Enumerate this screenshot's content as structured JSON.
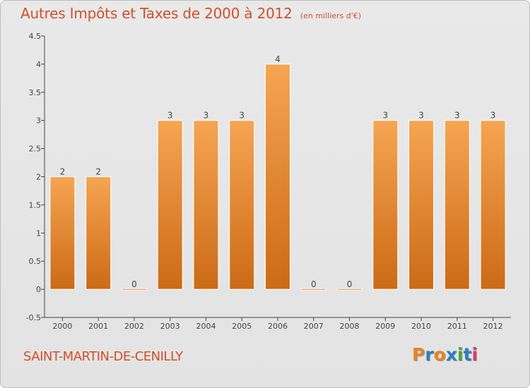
{
  "header": {
    "title": "Autres Impôts et Taxes de 2000 à 2012",
    "unit": "(en milliers d'€)"
  },
  "footer": {
    "commune": "SAINT-MARTIN-DE-CENILLY",
    "logo_text": "Proxiti"
  },
  "colors": {
    "title": "#d0502a",
    "bar_top": "#f6a552",
    "bar_bottom": "#cc6a16",
    "axis": "#444444",
    "logo": [
      "#e8831e",
      "#2a7fc1",
      "#e8831e",
      "#2a7fc1",
      "#49a834",
      "#2a7fc1",
      "#d63b7a"
    ]
  },
  "chart_data": {
    "type": "bar",
    "title": "Autres Impôts et Taxes de 2000 à 2012",
    "subtitle": "(en milliers d'€)",
    "xlabel": "",
    "ylabel": "",
    "categories": [
      "2000",
      "2001",
      "2002",
      "2003",
      "2004",
      "2005",
      "2006",
      "2007",
      "2008",
      "2009",
      "2010",
      "2011",
      "2012"
    ],
    "values": [
      2,
      2,
      0,
      3,
      3,
      3,
      4,
      0,
      0,
      3,
      3,
      3,
      3
    ],
    "value_labels": [
      "2",
      "2",
      "0",
      "3",
      "3",
      "3",
      "4",
      "0",
      "0",
      "3",
      "3",
      "3",
      "3"
    ],
    "ylim": [
      -0.5,
      4.5
    ],
    "yticks": [
      -0.5,
      0,
      0.5,
      1,
      1.5,
      2,
      2.5,
      3,
      3.5,
      4,
      4.5
    ],
    "ytick_labels": [
      "-0.5",
      "0",
      "0.5",
      "1",
      "1.5",
      "2",
      "2.5",
      "3",
      "3.5",
      "4",
      "4.5"
    ],
    "grid": false,
    "legend": "none"
  }
}
